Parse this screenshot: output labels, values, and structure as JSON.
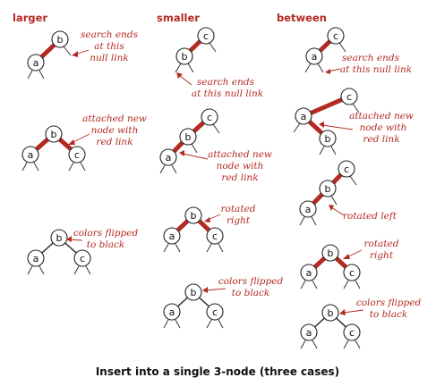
{
  "columns": [
    "larger",
    "smaller",
    "between"
  ],
  "caption": "Insert into a single 3-node (three cases)",
  "colors": {
    "red": "#b32a22",
    "black": "#222222"
  },
  "annotations": {
    "search_ends_1": "search ends",
    "search_ends_2": "at this",
    "search_ends_3": "null link",
    "search_ends_alt_2": "at this null link",
    "attached_1": "attached new",
    "attached_2": "node with",
    "attached_3": "red link",
    "colors_flipped_1": "colors flipped",
    "colors_flipped_2": "to black",
    "rotated_right_1": "rotated",
    "rotated_right_2": "right",
    "rotated_left": "rotated left"
  },
  "node_keys": {
    "a": "a",
    "b": "b",
    "c": "c"
  }
}
